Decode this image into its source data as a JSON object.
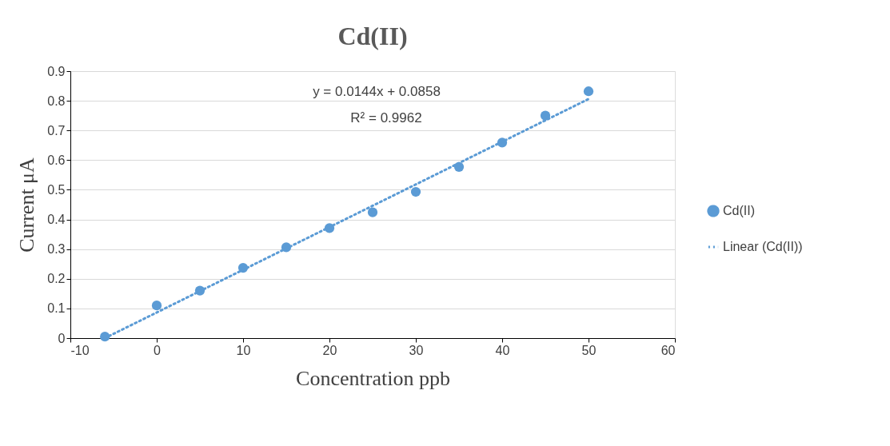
{
  "chart_data": {
    "type": "scatter",
    "title": "Cd(II)",
    "xlabel": "Concentration ppb",
    "ylabel": "Current μA",
    "xlim": [
      -10,
      60
    ],
    "xticks": [
      -10,
      0,
      10,
      20,
      30,
      40,
      50,
      60
    ],
    "ylim": [
      0,
      0.9
    ],
    "yticks": [
      0,
      0.1,
      0.2,
      0.3,
      0.4,
      0.5,
      0.6,
      0.7,
      0.8,
      0.9
    ],
    "grid": "y",
    "legend": "right",
    "annotations": [
      "y = 0.0144x  + 0.0858",
      "R² = 0.9962"
    ],
    "series": [
      {
        "name": "Cd(II)",
        "marker": "circle",
        "color": "#5b9bd5",
        "x": [
          -6,
          0,
          5,
          10,
          15,
          20,
          25,
          30,
          35,
          40,
          45,
          50
        ],
        "values": [
          0.005,
          0.11,
          0.16,
          0.237,
          0.306,
          0.371,
          0.424,
          0.493,
          0.577,
          0.659,
          0.75,
          0.832
        ]
      },
      {
        "name": "Linear (Cd(II))",
        "type": "line",
        "line_style": "dotted",
        "color": "#5b9bd5",
        "x": [
          -6,
          50
        ],
        "values": [
          0.0,
          0.806
        ]
      }
    ]
  }
}
